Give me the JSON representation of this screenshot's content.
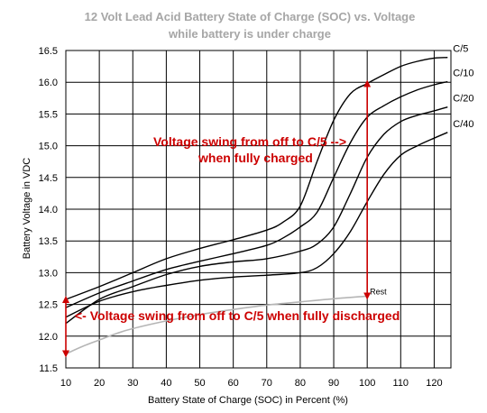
{
  "chart_data": {
    "type": "line",
    "title": "12 Volt Lead Acid Battery State of Charge (SOC) vs. Voltage",
    "subtitle": "while battery is under charge",
    "xlabel": "Battery State of Charge (SOC) in Percent (%)",
    "ylabel": "Battery Voltage in VDC",
    "xlim": [
      10,
      125
    ],
    "ylim": [
      11.5,
      16.5
    ],
    "xticks": [
      10,
      20,
      30,
      40,
      50,
      60,
      70,
      80,
      90,
      100,
      110,
      120
    ],
    "yticks": [
      "11.5",
      "12.0",
      "12.5",
      "13.0",
      "13.5",
      "14.0",
      "14.5",
      "15.0",
      "15.5",
      "16.0",
      "16.5"
    ],
    "grid": true,
    "series": [
      {
        "name": "C/5",
        "color": "#000000",
        "x": [
          10,
          20,
          30,
          40,
          50,
          60,
          70,
          75,
          80,
          85,
          90,
          95,
          100,
          105,
          110,
          115,
          120,
          124
        ],
        "y": [
          12.58,
          12.78,
          13.0,
          13.22,
          13.38,
          13.52,
          13.67,
          13.8,
          14.05,
          14.75,
          15.4,
          15.82,
          15.98,
          16.12,
          16.25,
          16.33,
          16.38,
          16.39
        ]
      },
      {
        "name": "C/10",
        "color": "#000000",
        "x": [
          10,
          20,
          30,
          40,
          50,
          60,
          70,
          75,
          80,
          85,
          90,
          95,
          100,
          105,
          110,
          115,
          120,
          124
        ],
        "y": [
          12.45,
          12.68,
          12.87,
          13.05,
          13.18,
          13.3,
          13.43,
          13.55,
          13.72,
          13.95,
          14.5,
          15.05,
          15.45,
          15.63,
          15.77,
          15.88,
          15.96,
          16.01
        ]
      },
      {
        "name": "C/20",
        "color": "#000000",
        "x": [
          10,
          20,
          30,
          40,
          50,
          60,
          70,
          80,
          85,
          90,
          95,
          100,
          105,
          110,
          115,
          120,
          124
        ],
        "y": [
          12.2,
          12.58,
          12.78,
          12.97,
          13.1,
          13.17,
          13.22,
          13.34,
          13.45,
          13.72,
          14.25,
          14.82,
          15.18,
          15.38,
          15.48,
          15.55,
          15.61
        ]
      },
      {
        "name": "C/40",
        "color": "#000000",
        "x": [
          10,
          20,
          30,
          40,
          50,
          60,
          70,
          80,
          85,
          90,
          95,
          100,
          105,
          110,
          115,
          120,
          124
        ],
        "y": [
          12.3,
          12.55,
          12.7,
          12.8,
          12.88,
          12.93,
          12.96,
          13.0,
          13.08,
          13.3,
          13.65,
          14.12,
          14.55,
          14.85,
          15.0,
          15.12,
          15.21
        ]
      },
      {
        "name": "Rest",
        "color": "#b5b5b5",
        "x": [
          10,
          15,
          20,
          25,
          30,
          40,
          50,
          60,
          70,
          80,
          90,
          100
        ],
        "y": [
          11.72,
          11.84,
          11.94,
          12.04,
          12.12,
          12.24,
          12.34,
          12.42,
          12.49,
          12.54,
          12.59,
          12.63
        ]
      }
    ],
    "annotations": [
      {
        "line1": "Voltage swing from off to C/5   -->",
        "line2": "when fully charged"
      },
      {
        "line1": "<- Voltage swing from off to C/5 when fully discharged"
      }
    ],
    "arrows": [
      {
        "x": 100,
        "y_from": 12.63,
        "y_to": 15.98,
        "color": "#cc0000"
      },
      {
        "x": 10,
        "y_from": 11.72,
        "y_to": 12.58,
        "color": "#cc0000"
      }
    ]
  }
}
